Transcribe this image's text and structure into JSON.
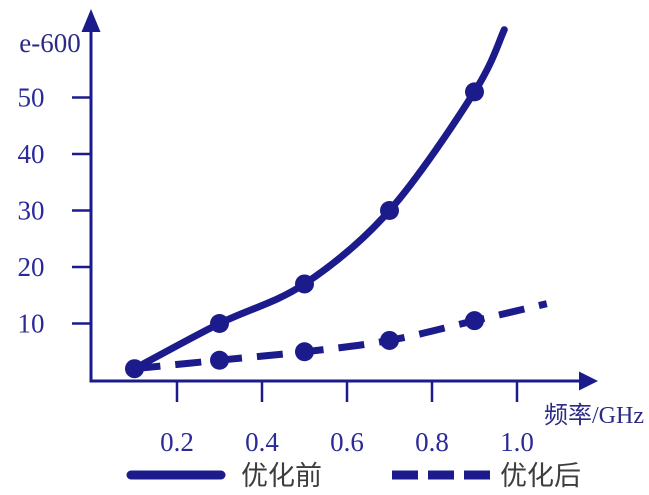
{
  "colors": {
    "navy": "#1b1b8c",
    "tick_label": "#2a2a99",
    "axis_label": "#2b2b85",
    "legend_text": "#3d3d3d",
    "background": "#ffffff"
  },
  "y_axis": {
    "unit_label": "e-600",
    "tick_labels": [
      "10",
      "20",
      "30",
      "40",
      "50"
    ]
  },
  "x_axis": {
    "label": "频率/GHz",
    "tick_labels": [
      "0.2",
      "0.4",
      "0.6",
      "0.8",
      "1.0"
    ]
  },
  "legend": {
    "items": [
      {
        "label": "优化前",
        "style": "solid"
      },
      {
        "label": "优化后",
        "style": "dashed"
      }
    ]
  },
  "chart_data": {
    "type": "line",
    "title": "",
    "xlabel": "频率/GHz",
    "ylabel": "e-600",
    "x": [
      0.1,
      0.3,
      0.5,
      0.7,
      0.9
    ],
    "series": [
      {
        "name": "优化前",
        "style": "solid",
        "values": [
          2,
          10,
          17,
          30,
          51
        ],
        "extension_point": {
          "x": 0.97,
          "y": 62
        }
      },
      {
        "name": "优化后",
        "style": "dashed",
        "values": [
          2,
          3.5,
          5,
          7,
          10.5
        ],
        "extension_point": {
          "x": 1.07,
          "y": 13.5
        }
      }
    ],
    "x_ticks": [
      0.2,
      0.4,
      0.6,
      0.8,
      1.0
    ],
    "y_ticks": [
      10,
      20,
      30,
      40,
      50
    ],
    "xlim": [
      0,
      1.19
    ],
    "ylim": [
      0,
      65
    ],
    "grid": false,
    "markers": true,
    "legend_position": "bottom"
  }
}
